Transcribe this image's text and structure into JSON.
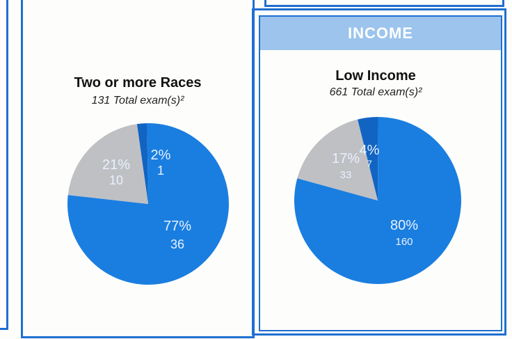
{
  "section_header": "INCOME",
  "colors": {
    "frame": "#1f6fd1",
    "header_bg": "#9cc4ec",
    "slice_main": "#1a7ee0",
    "slice_gray": "#bfc0c4",
    "slice_small": "#1264c2",
    "label_light": "#e8f1ff"
  },
  "chart_data": [
    {
      "type": "pie",
      "title": "Two or more Races",
      "subtitle": "131 Total exam(s)²",
      "slices": [
        {
          "percent": 2,
          "percent_label": "2%",
          "count_label": "1",
          "color": "#1264c2"
        },
        {
          "percent": 77,
          "percent_label": "77%",
          "count_label": "36",
          "color": "#1a7ee0"
        },
        {
          "percent": 21,
          "percent_label": "21%",
          "count_label": "10",
          "color": "#bfc0c4"
        }
      ]
    },
    {
      "type": "pie",
      "title": "Low Income",
      "subtitle": "661 Total exam(s)²",
      "slices": [
        {
          "percent": 4,
          "percent_label": "4%",
          "count_label": "7",
          "color": "#1264c2"
        },
        {
          "percent": 80,
          "percent_label": "80%",
          "count_label": "160",
          "color": "#1a7ee0"
        },
        {
          "percent": 17,
          "percent_label": "17%",
          "count_label": "33",
          "color": "#bfc0c4"
        }
      ]
    }
  ]
}
